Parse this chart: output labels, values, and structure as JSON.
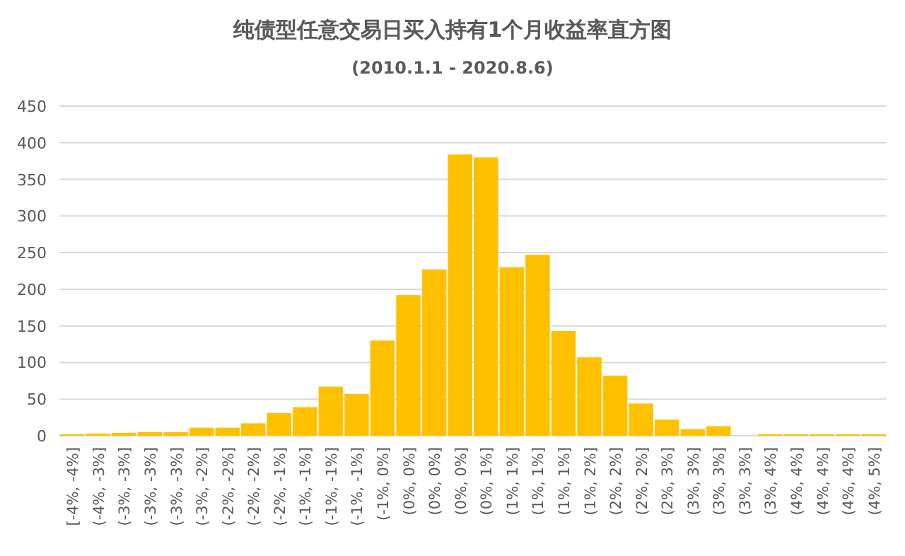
{
  "chart_data": {
    "type": "bar",
    "title": "纯债型任意交易日买入持有1个月收益率直方图",
    "subtitle": "(2010.1.1 - 2020.8.6)",
    "categories": [
      "[-4%, -4%]",
      "(-4%, -3%]",
      "(-3%, -3%]",
      "(-3%, -3%]",
      "(-3%, -3%]",
      "(-3%, -2%]",
      "(-2%, -2%]",
      "(-2%, -2%]",
      "(-2%, -1%]",
      "(-1%, -1%]",
      "(-1%, -1%]",
      "(-1%, -1%]",
      "(-1%, 0%]",
      "(0%, 0%]",
      "(0%, 0%]",
      "(0%, 0%]",
      "(0%, 1%]",
      "(1%, 1%]",
      "(1%, 1%]",
      "(1%, 1%]",
      "(1%, 2%]",
      "(2%, 2%]",
      "(2%, 2%]",
      "(2%, 3%]",
      "(3%, 3%]",
      "(3%, 3%]",
      "(3%, 3%]",
      "(3%, 4%]",
      "(4%, 4%]",
      "(4%, 4%]",
      "(4%, 4%]",
      "(4%, 5%]"
    ],
    "values": [
      2,
      3,
      4,
      5,
      5,
      11,
      11,
      17,
      31,
      39,
      67,
      57,
      130,
      192,
      227,
      384,
      380,
      230,
      247,
      143,
      107,
      82,
      44,
      22,
      9,
      13,
      0,
      2,
      2,
      2,
      2,
      2
    ],
    "color": "#ffc000",
    "ylim": [
      0,
      450
    ],
    "yticks": [
      0,
      50,
      100,
      150,
      200,
      250,
      300,
      350,
      400,
      450
    ],
    "grid": "y"
  }
}
